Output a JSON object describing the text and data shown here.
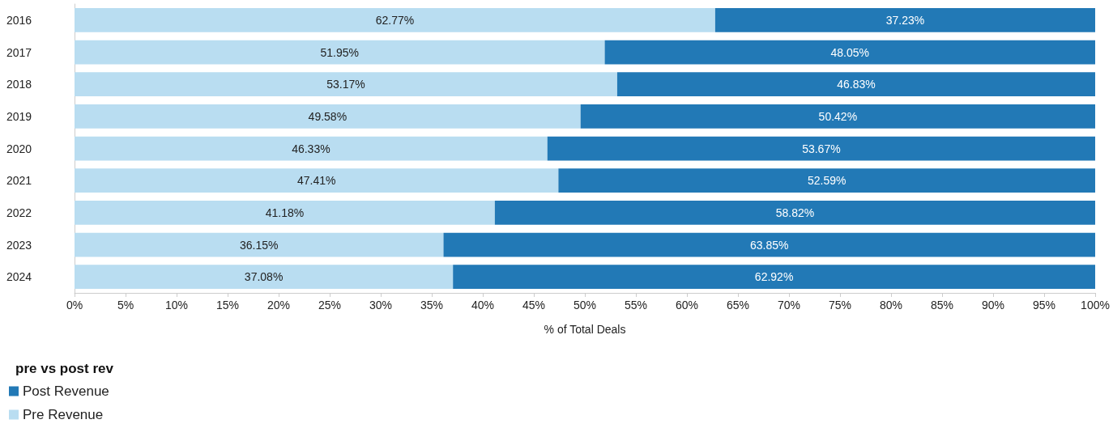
{
  "chart_data": {
    "type": "bar",
    "orientation": "horizontal",
    "stacked": true,
    "xlabel": "% of Total Deals",
    "legend_title": "pre vs post rev",
    "legend": "bottom left",
    "grid": false,
    "categories": [
      "2016",
      "2017",
      "2018",
      "2019",
      "2020",
      "2021",
      "2022",
      "2023",
      "2024"
    ],
    "xlim": [
      0,
      100
    ],
    "xticks": [
      {
        "value": 0,
        "label": "0%"
      },
      {
        "value": 5,
        "label": "5%"
      },
      {
        "value": 10,
        "label": "10%"
      },
      {
        "value": 15,
        "label": "15%"
      },
      {
        "value": 20,
        "label": "20%"
      },
      {
        "value": 25,
        "label": "25%"
      },
      {
        "value": 30,
        "label": "30%"
      },
      {
        "value": 35,
        "label": "35%"
      },
      {
        "value": 40,
        "label": "40%"
      },
      {
        "value": 45,
        "label": "45%"
      },
      {
        "value": 50,
        "label": "50%"
      },
      {
        "value": 55,
        "label": "55%"
      },
      {
        "value": 60,
        "label": "60%"
      },
      {
        "value": 65,
        "label": "65%"
      },
      {
        "value": 70,
        "label": "70%"
      },
      {
        "value": 75,
        "label": "75%"
      },
      {
        "value": 80,
        "label": "80%"
      },
      {
        "value": 85,
        "label": "85%"
      },
      {
        "value": 90,
        "label": "90%"
      },
      {
        "value": 95,
        "label": "95%"
      },
      {
        "value": 100,
        "label": "100%"
      }
    ],
    "series": [
      {
        "name": "Pre Revenue",
        "color": "#b9ddf1",
        "values": [
          62.77,
          51.95,
          53.17,
          49.58,
          46.33,
          47.41,
          41.18,
          36.15,
          37.08
        ],
        "value_labels": [
          "62.77%",
          "51.95%",
          "53.17%",
          "49.58%",
          "46.33%",
          "47.41%",
          "41.18%",
          "36.15%",
          "37.08%"
        ]
      },
      {
        "name": "Post Revenue",
        "color": "#2279b6",
        "values": [
          37.23,
          48.05,
          46.83,
          50.42,
          53.67,
          52.59,
          58.82,
          63.85,
          62.92
        ],
        "value_labels": [
          "37.23%",
          "48.05%",
          "46.83%",
          "50.42%",
          "53.67%",
          "52.59%",
          "58.82%",
          "63.85%",
          "62.92%"
        ]
      }
    ]
  }
}
